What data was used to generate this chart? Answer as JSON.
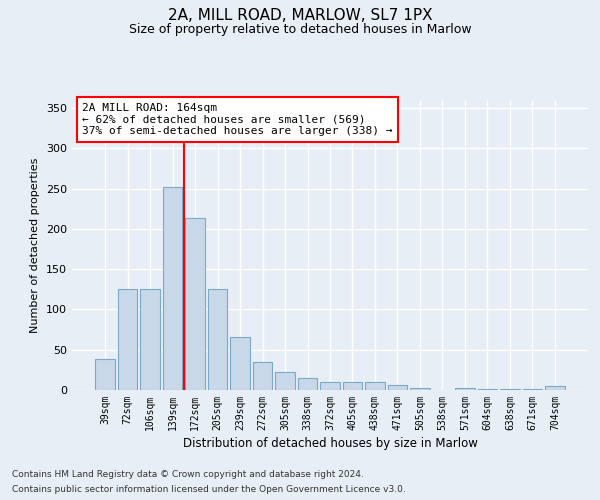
{
  "title1": "2A, MILL ROAD, MARLOW, SL7 1PX",
  "title2": "Size of property relative to detached houses in Marlow",
  "xlabel": "Distribution of detached houses by size in Marlow",
  "ylabel": "Number of detached properties",
  "categories": [
    "39sqm",
    "72sqm",
    "106sqm",
    "139sqm",
    "172sqm",
    "205sqm",
    "239sqm",
    "272sqm",
    "305sqm",
    "338sqm",
    "372sqm",
    "405sqm",
    "438sqm",
    "471sqm",
    "505sqm",
    "538sqm",
    "571sqm",
    "604sqm",
    "638sqm",
    "671sqm",
    "704sqm"
  ],
  "values": [
    38,
    125,
    125,
    252,
    213,
    125,
    66,
    35,
    22,
    15,
    10,
    10,
    10,
    6,
    3,
    0,
    3,
    1,
    1,
    1,
    5
  ],
  "bar_color": "#c8d8e8",
  "bar_edge_color": "#7aaac8",
  "vline_pos": 3.5,
  "annotation_text": "2A MILL ROAD: 164sqm\n← 62% of detached houses are smaller (569)\n37% of semi-detached houses are larger (338) →",
  "ylim": [
    0,
    360
  ],
  "yticks": [
    0,
    50,
    100,
    150,
    200,
    250,
    300,
    350
  ],
  "background_color": "#e8eef5",
  "grid_color": "white",
  "footer_line1": "Contains HM Land Registry data © Crown copyright and database right 2024.",
  "footer_line2": "Contains public sector information licensed under the Open Government Licence v3.0."
}
